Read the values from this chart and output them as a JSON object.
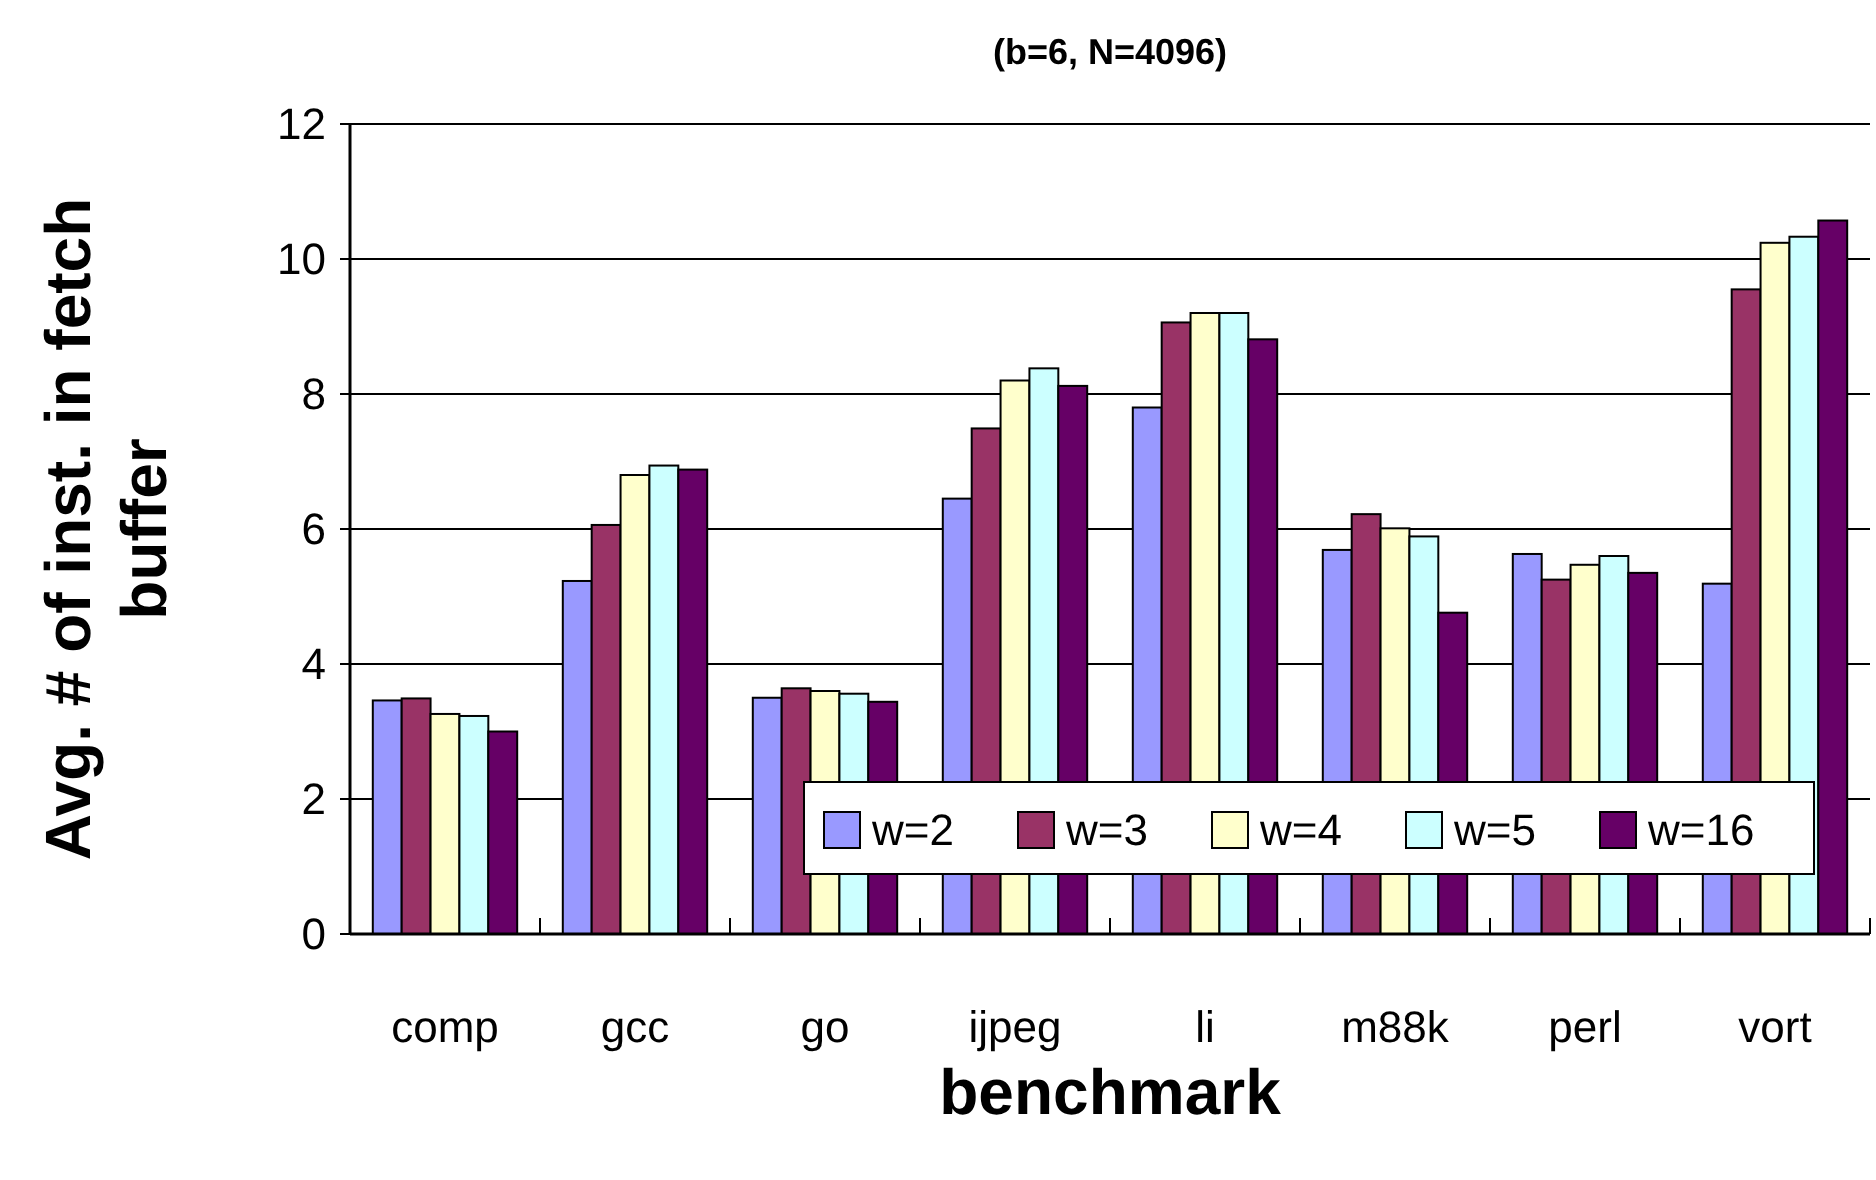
{
  "chart_data": {
    "type": "bar",
    "title": "(b=6, N=4096)",
    "xlabel": "benchmark",
    "ylabel": "Avg. # of inst. in fetch buffer",
    "categories": [
      "comp",
      "gcc",
      "go",
      "ijpeg",
      "li",
      "m88k",
      "perl",
      "vort"
    ],
    "series": [
      {
        "name": "w=2",
        "color": "#9999ff",
        "values": [
          3.46,
          5.23,
          3.5,
          6.45,
          7.8,
          5.69,
          5.63,
          5.19
        ]
      },
      {
        "name": "w=3",
        "color": "#993366",
        "values": [
          3.49,
          6.06,
          3.64,
          7.49,
          9.06,
          6.22,
          5.25,
          9.55
        ]
      },
      {
        "name": "w=4",
        "color": "#ffffcc",
        "values": [
          3.26,
          6.8,
          3.6,
          8.2,
          9.2,
          6.01,
          5.47,
          10.24
        ]
      },
      {
        "name": "w=5",
        "color": "#ccffff",
        "values": [
          3.23,
          6.94,
          3.56,
          8.38,
          9.2,
          5.89,
          5.6,
          10.33
        ]
      },
      {
        "name": "w=16",
        "color": "#660066",
        "values": [
          3.0,
          6.88,
          3.44,
          8.12,
          8.81,
          4.76,
          5.35,
          10.57
        ]
      }
    ],
    "ylim": [
      0,
      12
    ],
    "yticks": [
      0,
      2,
      4,
      6,
      8,
      10,
      12
    ],
    "grid": "y",
    "legend": "bottom right"
  }
}
